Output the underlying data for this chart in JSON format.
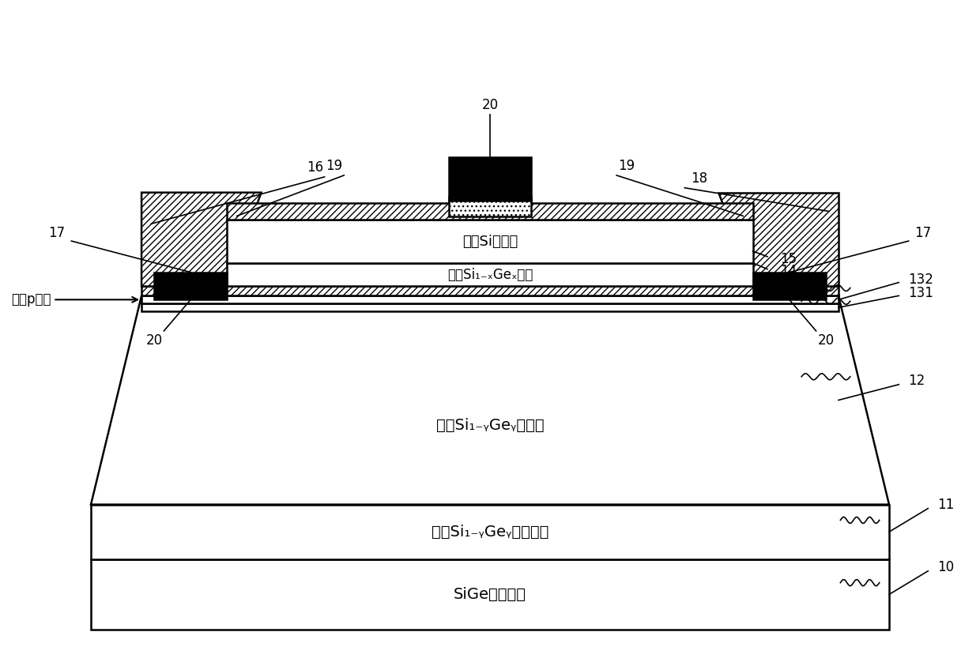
{
  "bg_color": "#ffffff",
  "line_color": "#000000",
  "fig_width": 12.4,
  "fig_height": 8.19,
  "labels": {
    "substrate": "SiGe虚拟衬底",
    "sub_collector": "弛豫Si₁₋ᵧGeᵧ次集电区",
    "collector": "弛豫Si₁₋ᵧGeᵧ集电区",
    "base": "应变Si₁₋ₓGeₓ基区",
    "emitter": "应变Si发射区",
    "superjunction": "超结p型层"
  }
}
